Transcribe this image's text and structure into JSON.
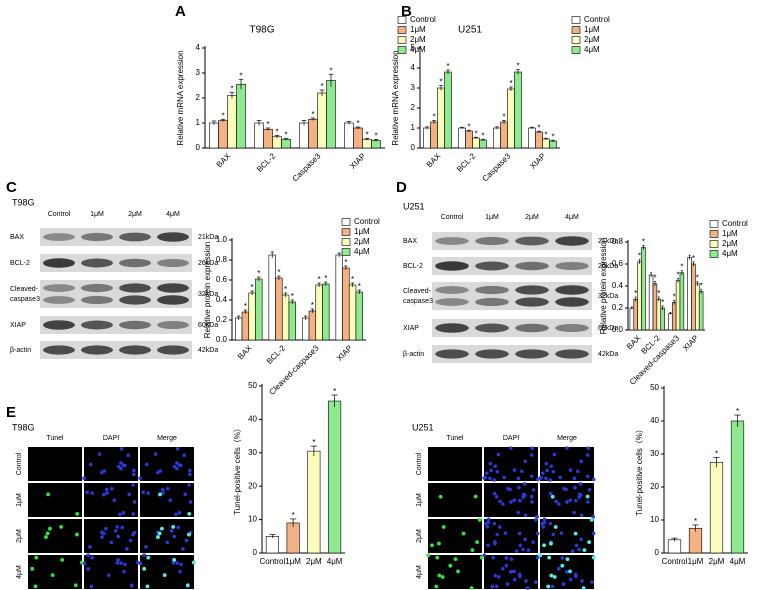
{
  "panel_labels": [
    "A",
    "B",
    "C",
    "D",
    "E"
  ],
  "chart_data": [
    {
      "type": "bar",
      "title": "T98G",
      "y_label": "Relative mRNA expression",
      "significance_mark": "*",
      "categories": [
        "BAX",
        "BCL-2",
        "Caspase3",
        "XIAP"
      ],
      "series": [
        {
          "name": "Control",
          "color": "#ffffff",
          "values": [
            1.0,
            1.0,
            1.0,
            1.0
          ],
          "errors": [
            0.08,
            0.1,
            0.1,
            0.06
          ]
        },
        {
          "name": "1μM",
          "color": "#f4b183",
          "values": [
            1.1,
            0.75,
            1.15,
            0.8
          ],
          "errors": [
            0.05,
            0.05,
            0.05,
            0.04
          ]
        },
        {
          "name": "2μM",
          "color": "#fbfcbc",
          "values": [
            2.1,
            0.45,
            2.2,
            0.35
          ],
          "errors": [
            0.12,
            0.05,
            0.12,
            0.04
          ]
        },
        {
          "name": "4μM",
          "color": "#8fea8f",
          "values": [
            2.55,
            0.35,
            2.7,
            0.3
          ],
          "errors": [
            0.2,
            0.04,
            0.25,
            0.04
          ]
        }
      ],
      "ylim": [
        0,
        4
      ],
      "yticks": [
        0,
        1,
        2,
        3,
        4
      ]
    },
    {
      "type": "bar",
      "title": "U251",
      "y_label": "Relative mRNA expression",
      "significance_mark": "*",
      "categories": [
        "BAX",
        "BCL-2",
        "Caspase3",
        "XIAP"
      ],
      "series": [
        {
          "name": "Control",
          "color": "#ffffff",
          "values": [
            1.0,
            1.0,
            1.0,
            1.0
          ],
          "errors": [
            0.06,
            0.04,
            0.06,
            0.04
          ]
        },
        {
          "name": "1μM",
          "color": "#f4b183",
          "values": [
            1.3,
            0.85,
            1.3,
            0.8
          ],
          "errors": [
            0.08,
            0.04,
            0.08,
            0.04
          ]
        },
        {
          "name": "2μM",
          "color": "#fbfcbc",
          "values": [
            3.0,
            0.5,
            2.95,
            0.45
          ],
          "errors": [
            0.12,
            0.04,
            0.1,
            0.04
          ]
        },
        {
          "name": "4μM",
          "color": "#8fea8f",
          "values": [
            3.8,
            0.4,
            3.8,
            0.35
          ],
          "errors": [
            0.1,
            0.04,
            0.12,
            0.04
          ]
        }
      ],
      "ylim": [
        0,
        5
      ],
      "yticks": [
        0,
        1,
        2,
        3,
        4,
        5
      ]
    },
    {
      "type": "bar",
      "y_label": "Relative protein expression",
      "significance_mark": "*",
      "categories": [
        "BAX",
        "BCL-2",
        "Cleaved-caspase3",
        "XIAP"
      ],
      "series": [
        {
          "name": "Control",
          "color": "#ffffff",
          "values": [
            0.22,
            0.85,
            0.22,
            0.85
          ],
          "errors": [
            0.02,
            0.03,
            0.02,
            0.02
          ]
        },
        {
          "name": "1μM",
          "color": "#f4b183",
          "values": [
            0.28,
            0.62,
            0.29,
            0.72
          ],
          "errors": [
            0.02,
            0.02,
            0.02,
            0.02
          ]
        },
        {
          "name": "2μM",
          "color": "#fbfcbc",
          "values": [
            0.47,
            0.45,
            0.55,
            0.55
          ],
          "errors": [
            0.02,
            0.02,
            0.02,
            0.02
          ]
        },
        {
          "name": "4μM",
          "color": "#8fea8f",
          "values": [
            0.61,
            0.38,
            0.56,
            0.48
          ],
          "errors": [
            0.02,
            0.02,
            0.02,
            0.02
          ]
        }
      ],
      "ylim": [
        0,
        1.0
      ],
      "yticks": [
        {
          "value": 0,
          "label": "0.0"
        },
        0.2,
        0.4,
        0.6,
        0.8,
        {
          "value": 1,
          "label": "1.0"
        }
      ]
    },
    {
      "type": "bar",
      "y_label": "Relative protein expression",
      "significance_mark": "*",
      "categories": [
        "BAX",
        "BCL-2",
        "Cleaved-caspase3",
        "XIAP"
      ],
      "series": [
        {
          "name": "Control",
          "color": "#ffffff",
          "values": [
            0.2,
            0.5,
            0.15,
            0.66
          ],
          "errors": [
            0.01,
            0.02,
            0.01,
            0.02
          ]
        },
        {
          "name": "1μM",
          "color": "#f4b183",
          "values": [
            0.28,
            0.42,
            0.25,
            0.6
          ],
          "errors": [
            0.02,
            0.02,
            0.02,
            0.02
          ]
        },
        {
          "name": "2μM",
          "color": "#fbfcbc",
          "values": [
            0.62,
            0.28,
            0.45,
            0.42
          ],
          "errors": [
            0.02,
            0.02,
            0.02,
            0.02
          ]
        },
        {
          "name": "4μM",
          "color": "#8fea8f",
          "values": [
            0.75,
            0.2,
            0.52,
            0.35
          ],
          "errors": [
            0.02,
            0.02,
            0.02,
            0.02
          ]
        }
      ],
      "ylim": [
        0,
        0.8
      ],
      "yticks": [
        {
          "value": 0,
          "label": "0.0"
        },
        0.2,
        0.4,
        0.6,
        0.8
      ]
    },
    {
      "type": "bar",
      "y_label": "Tunel-positive cells（%）",
      "significance_mark": "*",
      "categories": [
        "Control",
        "1μM",
        "2μM",
        "4μM"
      ],
      "values": [
        5,
        9,
        30.5,
        45.5
      ],
      "errors": [
        0.5,
        1.2,
        1.5,
        1.8
      ],
      "colors": [
        "#ffffff",
        "#f4b183",
        "#fbfcbc",
        "#8fea8f"
      ],
      "ylim": [
        0,
        50
      ],
      "yticks": [
        0,
        10,
        20,
        30,
        40,
        50
      ]
    },
    {
      "type": "bar",
      "y_label": "Tunel-positive cells（%）",
      "significance_mark": "*",
      "categories": [
        "Control",
        "1μM",
        "2μM",
        "4μM"
      ],
      "values": [
        4,
        7.5,
        27.5,
        40
      ],
      "errors": [
        0.5,
        1.0,
        1.5,
        1.8
      ],
      "colors": [
        "#ffffff",
        "#f4b183",
        "#fbfcbc",
        "#8fea8f"
      ],
      "ylim": [
        0,
        50
      ],
      "yticks": [
        0,
        10,
        20,
        30,
        40,
        50
      ]
    }
  ],
  "blots": [
    {
      "cell_line": "T98G",
      "lanes": [
        "Control",
        "1μM",
        "2μM",
        "4μM"
      ],
      "rows": [
        {
          "label": "BAX",
          "size": "21kDa"
        },
        {
          "label": "BCL-2",
          "size": "26kDa"
        },
        {
          "label": [
            "Cleaved-",
            "caspase3"
          ],
          "size": "32kDa"
        },
        {
          "label": "XIAP",
          "size": "60kDa"
        },
        {
          "label": "β-actin",
          "size": "42kDa"
        }
      ]
    },
    {
      "cell_line": "U251",
      "lanes": [
        "Control",
        "1μM",
        "2μM",
        "4μM"
      ],
      "rows": [
        {
          "label": "BAX",
          "size": "21kDa"
        },
        {
          "label": "BCL-2",
          "size": "26kDa"
        },
        {
          "label": [
            "Cleaved-",
            "caspase3"
          ],
          "size": "32kDa"
        },
        {
          "label": "XIAP",
          "size": "60kDa"
        },
        {
          "label": "β-actin",
          "size": "42kDa"
        }
      ]
    }
  ],
  "tunel": [
    {
      "cell_line": "T98G",
      "channels": [
        "Tunel",
        "DAPI",
        "Merge"
      ],
      "rows": [
        "Control",
        "1μM",
        "2μM",
        "4μM"
      ]
    },
    {
      "cell_line": "U251",
      "channels": [
        "Tunel",
        "DAPI",
        "Merge"
      ],
      "rows": [
        "Control",
        "1μM",
        "2μM",
        "4μM"
      ]
    }
  ]
}
